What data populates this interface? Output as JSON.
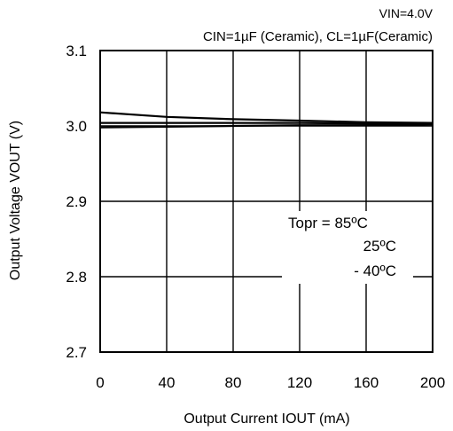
{
  "chart_data": {
    "type": "line",
    "header_lines": [
      "VIN=4.0V",
      "CIN=1µF (Ceramic), CL=1µF(Ceramic)"
    ],
    "xlabel": "Output Current IOUT (mA)",
    "ylabel": "Output Voltage VOUT (V)",
    "xlim": [
      0,
      200
    ],
    "ylim": [
      2.7,
      3.1
    ],
    "x_ticks": [
      "0",
      "40",
      "80",
      "120",
      "160",
      "200"
    ],
    "y_ticks": [
      "2.7",
      "2.8",
      "2.9",
      "3.0",
      "3.1"
    ],
    "grid": true,
    "legend": {
      "lines": [
        "Topr = 85ºC",
        "25ºC",
        "- 40ºC"
      ],
      "placement": "center-right"
    },
    "series": [
      {
        "name": "- 40ºC",
        "x": [
          0,
          40,
          80,
          120,
          160,
          200
        ],
        "y": [
          3.018,
          3.012,
          3.009,
          3.007,
          3.005,
          3.004
        ]
      },
      {
        "name": "25ºC",
        "x": [
          0,
          40,
          80,
          120,
          160,
          200
        ],
        "y": [
          3.004,
          3.004,
          3.004,
          3.004,
          3.003,
          3.003
        ]
      },
      {
        "name": "85ºC",
        "x": [
          0,
          40,
          80,
          120,
          160,
          200
        ],
        "y": [
          2.998,
          2.999,
          3.0,
          3.001,
          3.001,
          3.002
        ]
      }
    ]
  }
}
